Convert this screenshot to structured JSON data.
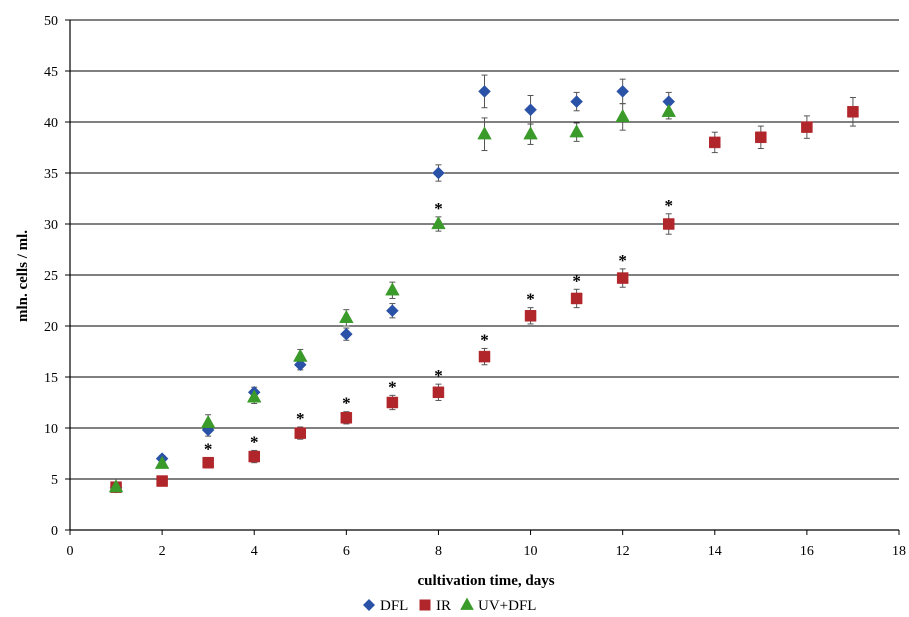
{
  "chart_data": {
    "type": "scatter",
    "title": "",
    "xlabel": "cultivation time, days",
    "ylabel": "mln. cells / ml.",
    "xlim": [
      0,
      18
    ],
    "ylim": [
      0,
      50
    ],
    "xticks": [
      "0",
      "2",
      "4",
      "6",
      "8",
      "10",
      "12",
      "14",
      "16",
      "18"
    ],
    "yticks": [
      "0",
      "5",
      "10",
      "15",
      "20",
      "25",
      "30",
      "35",
      "40",
      "45",
      "50"
    ],
    "grid": "horizontal",
    "legend_position": "bottom",
    "significance_marker": "*",
    "series": [
      {
        "name": "DFL",
        "marker": "diamond",
        "color": "#2a52a6",
        "points": [
          {
            "x": 1,
            "y": 4.2,
            "err": 0.3
          },
          {
            "x": 2,
            "y": 7.0,
            "err": 0.3
          },
          {
            "x": 3,
            "y": 9.8,
            "err": 0.6
          },
          {
            "x": 4,
            "y": 13.5,
            "err": 0.5
          },
          {
            "x": 5,
            "y": 16.2,
            "err": 0.5
          },
          {
            "x": 6,
            "y": 19.2,
            "err": 0.6
          },
          {
            "x": 7,
            "y": 21.5,
            "err": 0.7
          },
          {
            "x": 8,
            "y": 35.0,
            "err": 0.8
          },
          {
            "x": 9,
            "y": 43.0,
            "err": 1.6
          },
          {
            "x": 10,
            "y": 41.2,
            "err": 1.4
          },
          {
            "x": 11,
            "y": 42.0,
            "err": 0.9
          },
          {
            "x": 12,
            "y": 43.0,
            "err": 1.2
          },
          {
            "x": 13,
            "y": 42.0,
            "err": 0.9
          }
        ]
      },
      {
        "name": "IR",
        "marker": "square",
        "color": "#b0262a",
        "points": [
          {
            "x": 1,
            "y": 4.2,
            "err": 0.3,
            "sig": false
          },
          {
            "x": 2,
            "y": 4.8,
            "err": 0.4,
            "sig": false
          },
          {
            "x": 3,
            "y": 6.6,
            "err": 0.5,
            "sig": true
          },
          {
            "x": 4,
            "y": 7.2,
            "err": 0.6,
            "sig": true
          },
          {
            "x": 5,
            "y": 9.5,
            "err": 0.6,
            "sig": true
          },
          {
            "x": 6,
            "y": 11.0,
            "err": 0.6,
            "sig": true
          },
          {
            "x": 7,
            "y": 12.5,
            "err": 0.7,
            "sig": true
          },
          {
            "x": 8,
            "y": 13.5,
            "err": 0.8,
            "sig": true
          },
          {
            "x": 9,
            "y": 17.0,
            "err": 0.8,
            "sig": true
          },
          {
            "x": 10,
            "y": 21.0,
            "err": 0.8,
            "sig": true
          },
          {
            "x": 11,
            "y": 22.7,
            "err": 0.9,
            "sig": true
          },
          {
            "x": 12,
            "y": 24.7,
            "err": 0.9,
            "sig": true
          },
          {
            "x": 13,
            "y": 30.0,
            "err": 1.0,
            "sig": true
          },
          {
            "x": 14,
            "y": 38.0,
            "err": 1.0,
            "sig": false
          },
          {
            "x": 15,
            "y": 38.5,
            "err": 1.1,
            "sig": false
          },
          {
            "x": 16,
            "y": 39.5,
            "err": 1.1,
            "sig": false
          },
          {
            "x": 17,
            "y": 41.0,
            "err": 1.4,
            "sig": false
          }
        ]
      },
      {
        "name": "UV+DFL",
        "marker": "triangle",
        "color": "#3a9a2a",
        "points": [
          {
            "x": 1,
            "y": 4.2,
            "err": 0.3,
            "sig": false
          },
          {
            "x": 2,
            "y": 6.5,
            "err": 0.3,
            "sig": false
          },
          {
            "x": 3,
            "y": 10.5,
            "err": 0.8,
            "sig": false
          },
          {
            "x": 4,
            "y": 13.0,
            "err": 0.6,
            "sig": false
          },
          {
            "x": 5,
            "y": 17.0,
            "err": 0.7,
            "sig": false
          },
          {
            "x": 6,
            "y": 20.8,
            "err": 0.8,
            "sig": false
          },
          {
            "x": 7,
            "y": 23.5,
            "err": 0.8,
            "sig": false
          },
          {
            "x": 8,
            "y": 30.0,
            "err": 0.7,
            "sig": true
          },
          {
            "x": 9,
            "y": 38.8,
            "err": 1.6,
            "sig": false
          },
          {
            "x": 10,
            "y": 38.8,
            "err": 1.0,
            "sig": false
          },
          {
            "x": 11,
            "y": 39.0,
            "err": 0.9,
            "sig": false
          },
          {
            "x": 12,
            "y": 40.5,
            "err": 1.3,
            "sig": false
          },
          {
            "x": 13,
            "y": 41.0,
            "err": 0.7,
            "sig": false
          }
        ]
      }
    ]
  }
}
